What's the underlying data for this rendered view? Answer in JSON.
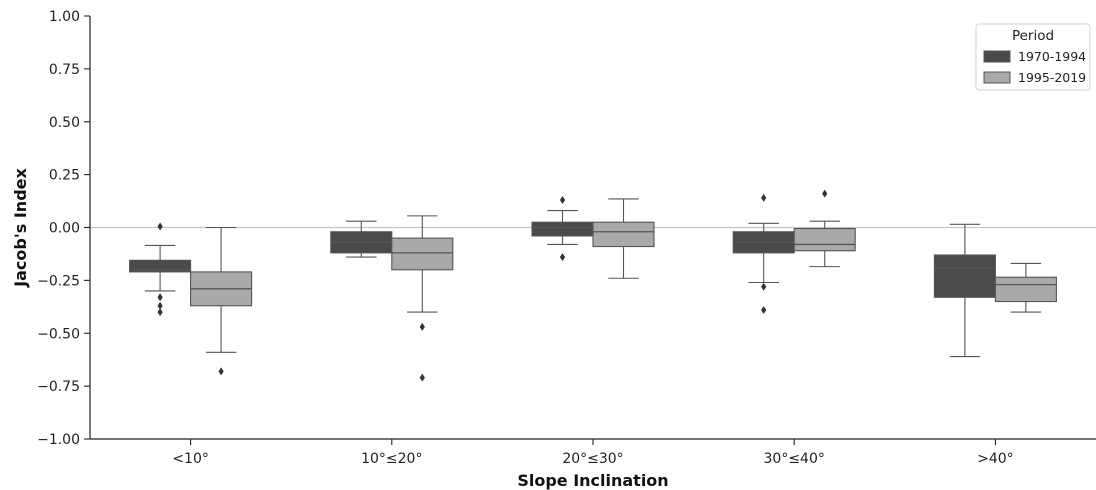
{
  "chart_data": {
    "type": "box",
    "title": "",
    "xlabel": "Slope Inclination",
    "ylabel": "Jacob's Index",
    "ylim": [
      -1.0,
      1.0
    ],
    "yticks": [
      1.0,
      0.75,
      0.5,
      0.25,
      0.0,
      -0.25,
      -0.5,
      -0.75,
      -1.0
    ],
    "ytick_labels": [
      "1.00",
      "0.75",
      "0.50",
      "0.25",
      "0.00",
      "−0.25",
      "−0.50",
      "−0.75",
      "−1.00"
    ],
    "categories": [
      "<10°",
      "10°≤20°",
      "20°≤30°",
      "30°≤40°",
      ">40°"
    ],
    "reference_line": 0.0,
    "grid": false,
    "legend": {
      "title": "Period",
      "position": "top-right"
    },
    "series": [
      {
        "name": "1970-1994",
        "color": "#4a4a4a",
        "boxes": [
          {
            "whislo": -0.3,
            "q1": -0.21,
            "med": -0.2,
            "q3": -0.155,
            "whishi": -0.085,
            "fliers": [
              0.005,
              -0.33,
              -0.37,
              -0.4
            ]
          },
          {
            "whislo": -0.14,
            "q1": -0.12,
            "med": -0.07,
            "q3": -0.02,
            "whishi": 0.03,
            "fliers": []
          },
          {
            "whislo": -0.08,
            "q1": -0.04,
            "med": 0.0,
            "q3": 0.025,
            "whishi": 0.08,
            "fliers": [
              0.13,
              -0.14
            ]
          },
          {
            "whislo": -0.26,
            "q1": -0.12,
            "med": -0.07,
            "q3": -0.02,
            "whishi": 0.02,
            "fliers": [
              0.14,
              -0.28,
              -0.39
            ]
          },
          {
            "whislo": -0.61,
            "q1": -0.33,
            "med": -0.19,
            "q3": -0.13,
            "whishi": 0.015,
            "fliers": []
          }
        ]
      },
      {
        "name": "1995-2019",
        "color": "#a9a9a9",
        "boxes": [
          {
            "whislo": -0.59,
            "q1": -0.37,
            "med": -0.29,
            "q3": -0.21,
            "whishi": 0.0,
            "fliers": [
              -0.68
            ]
          },
          {
            "whislo": -0.4,
            "q1": -0.2,
            "med": -0.12,
            "q3": -0.05,
            "whishi": 0.055,
            "fliers": [
              -0.47,
              -0.71
            ]
          },
          {
            "whislo": -0.24,
            "q1": -0.09,
            "med": -0.02,
            "q3": 0.025,
            "whishi": 0.135,
            "fliers": []
          },
          {
            "whislo": -0.185,
            "q1": -0.11,
            "med": -0.08,
            "q3": -0.005,
            "whishi": 0.03,
            "fliers": [
              0.16
            ]
          },
          {
            "whislo": -0.4,
            "q1": -0.35,
            "med": -0.27,
            "q3": -0.235,
            "whishi": -0.17,
            "fliers": []
          }
        ]
      }
    ]
  }
}
